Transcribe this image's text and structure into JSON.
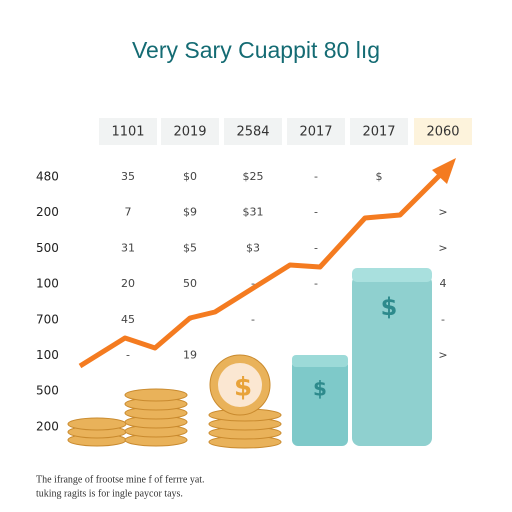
{
  "title": "Very Sary Cuappit 80 lıg",
  "table": {
    "header": [
      "1101",
      "2019",
      "2584",
      "2017",
      "2017",
      "2060"
    ],
    "rows": [
      {
        "label": "480",
        "cells": [
          "35",
          "$0",
          "$25",
          "-",
          "$",
          null
        ]
      },
      {
        "label": "200",
        "cells": [
          "7",
          "$9",
          "$31",
          "-",
          null,
          ">"
        ]
      },
      {
        "label": "500",
        "cells": [
          "31",
          "$5",
          "$3",
          "-",
          null,
          ">"
        ]
      },
      {
        "label": "100",
        "cells": [
          "20",
          "50",
          "-",
          "-",
          null,
          "4"
        ]
      },
      {
        "label": "700",
        "cells": [
          "45",
          "-",
          "-",
          null,
          null,
          "-"
        ]
      },
      {
        "label": "100",
        "cells": [
          "-",
          "19",
          null,
          null,
          null,
          ">"
        ]
      },
      {
        "label": "500",
        "cells": [
          null,
          null,
          null,
          null,
          null,
          null
        ]
      },
      {
        "label": "200",
        "cells": [
          null,
          null,
          null,
          null,
          null,
          null
        ]
      }
    ]
  },
  "footer": [
    "The ifrange of frootse mine f of ferrre yat.",
    "tuking ragits is for ingle paycor tays."
  ]
}
